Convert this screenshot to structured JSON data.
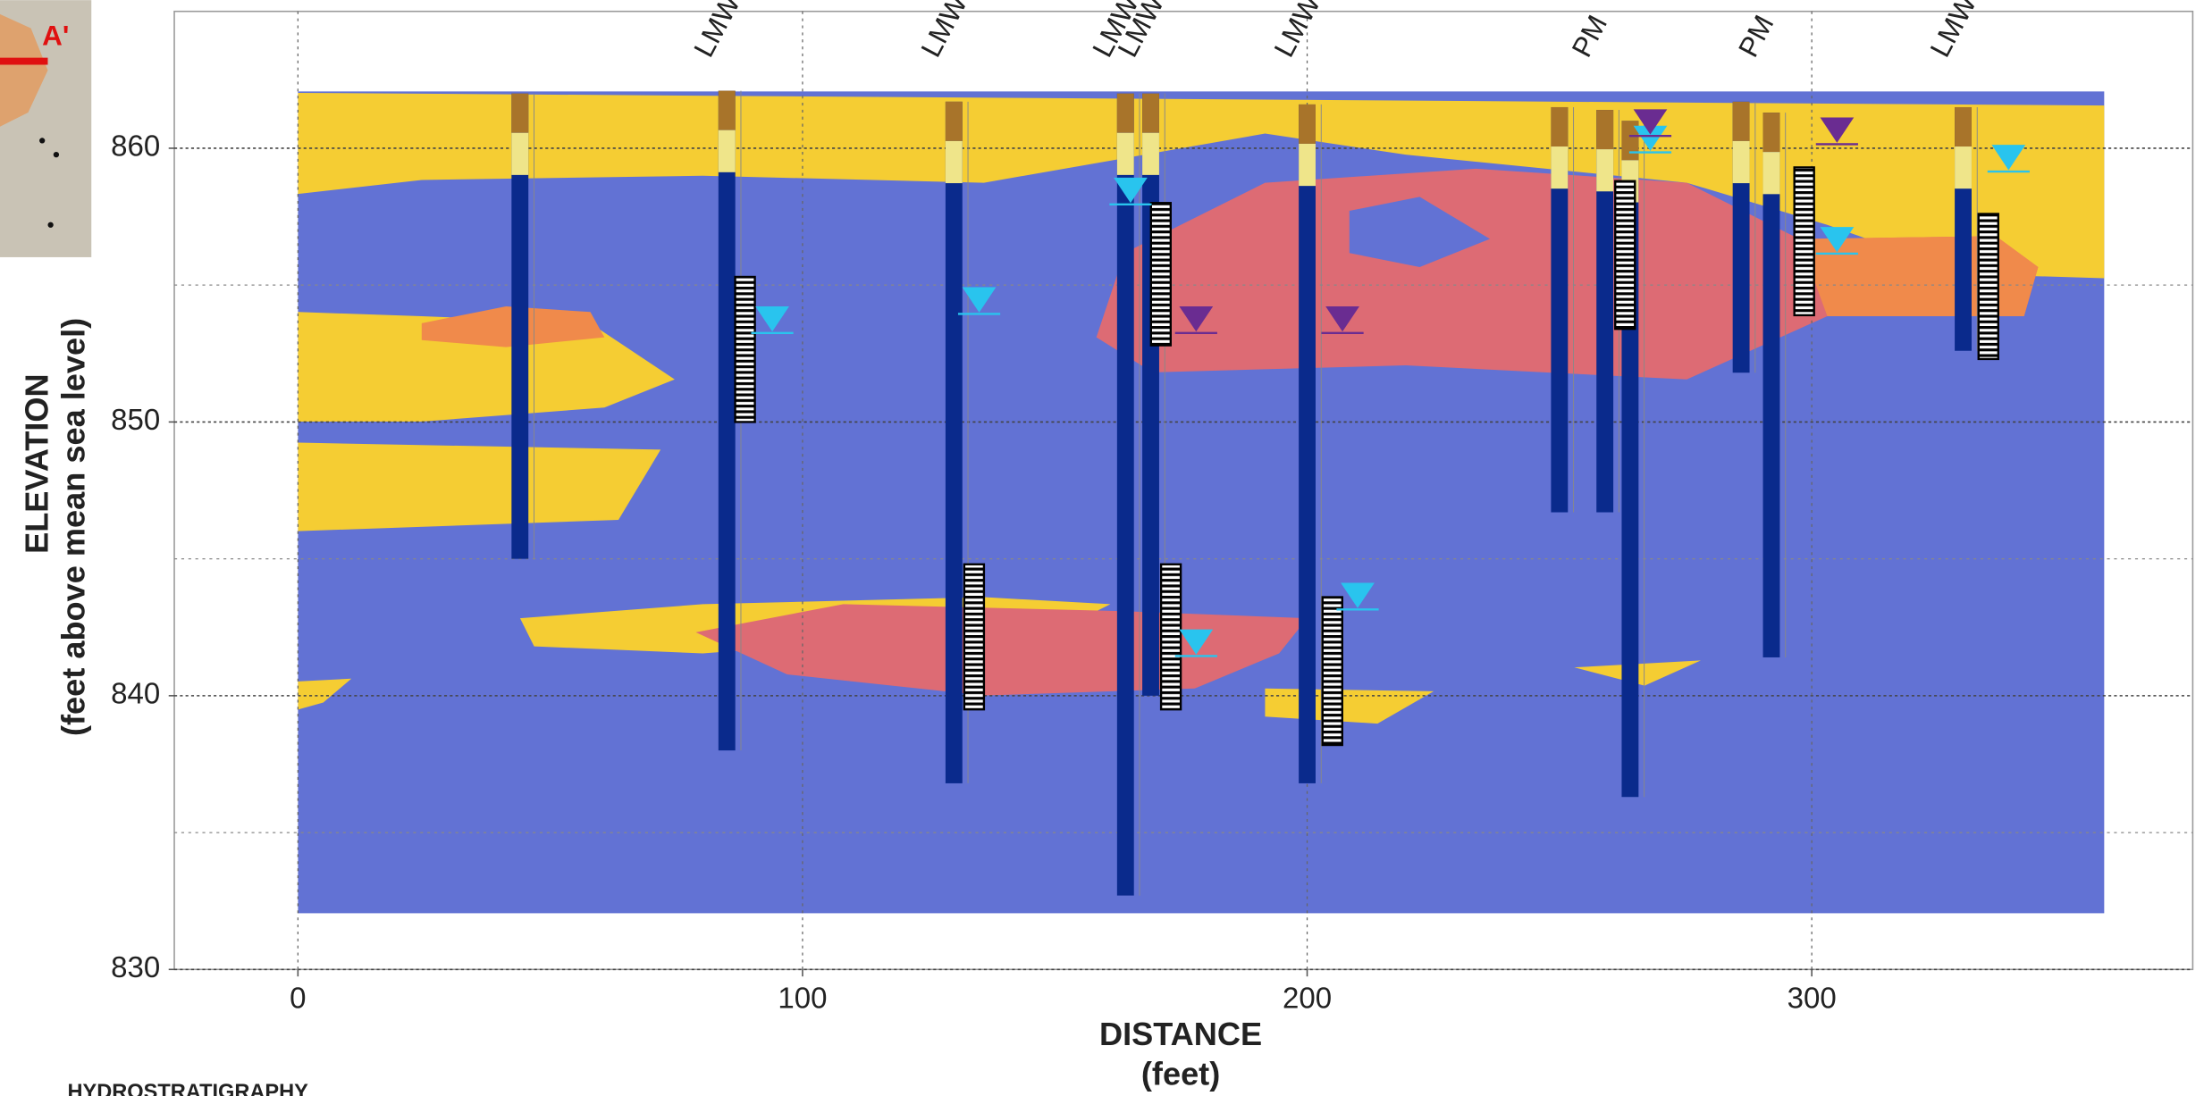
{
  "chart_data": {
    "type": "cross_section",
    "x_label": "DISTANCE",
    "x_label_unit": "(feet)",
    "y_label": "ELEVATION",
    "y_label_unit": "(feet above mean sea level)",
    "legend_heading": "HYDROSTRATIGRAPHY",
    "map_label": "A'",
    "xlim": [
      -24.5,
      375.5
    ],
    "ylim": [
      830,
      865
    ],
    "xticks": [
      0,
      100,
      200,
      300
    ],
    "yticks": [
      830,
      840,
      850,
      860
    ],
    "y_minor_grid": [
      835,
      845,
      855
    ],
    "grid": true,
    "well_color": "#0a2a8c",
    "screen_color": "#000000",
    "wells": [
      {
        "label": null,
        "x": 44,
        "top": 862,
        "bottom": 845
      },
      {
        "label": "LMW-",
        "x": 85,
        "top": 862.1,
        "bottom": 838
      },
      {
        "label": "LMW-",
        "x": 130,
        "top": 861.7,
        "bottom": 836.8
      },
      {
        "label": "LMW-",
        "x": 164,
        "top": 862,
        "bottom": 832.7
      },
      {
        "label": "LMW-",
        "x": 169,
        "top": 862,
        "bottom": 840
      },
      {
        "label": "LMW-",
        "x": 200,
        "top": 861.6,
        "bottom": 836.8
      },
      {
        "label": null,
        "x": 250,
        "top": 861.5,
        "bottom": 846.7
      },
      {
        "label": "PM",
        "x": 259,
        "top": 861.4,
        "bottom": 846.7
      },
      {
        "label": null,
        "x": 264,
        "top": 861,
        "bottom": 836.3
      },
      {
        "label": null,
        "x": 286,
        "top": 861.7,
        "bottom": 851.8
      },
      {
        "label": "PM",
        "x": 292,
        "top": 861.3,
        "bottom": 841.4
      },
      {
        "label": "LMW",
        "x": 330,
        "top": 861.5,
        "bottom": 852.6
      }
    ],
    "screens": [
      {
        "x": 88.6,
        "top": 855.3,
        "bottom": 850
      },
      {
        "x": 134,
        "top": 844.8,
        "bottom": 839.5
      },
      {
        "x": 171,
        "top": 858,
        "bottom": 852.8
      },
      {
        "x": 173,
        "top": 844.8,
        "bottom": 839.5
      },
      {
        "x": 205,
        "top": 843.6,
        "bottom": 838.2
      },
      {
        "x": 263,
        "top": 858.8,
        "bottom": 853.4
      },
      {
        "x": 298.5,
        "top": 859.3,
        "bottom": 853.9
      },
      {
        "x": 335,
        "top": 857.6,
        "bottom": 852.3
      }
    ],
    "water_levels": [
      {
        "x": 94,
        "elevation": 853.3,
        "color": "#29c4ee"
      },
      {
        "x": 135,
        "elevation": 854,
        "color": "#29c4ee"
      },
      {
        "x": 165,
        "elevation": 858,
        "color": "#29c4ee"
      },
      {
        "x": 178,
        "elevation": 841.5,
        "color": "#29c4ee"
      },
      {
        "x": 210,
        "elevation": 843.2,
        "color": "#29c4ee"
      },
      {
        "x": 268,
        "elevation": 859.9,
        "color": "#29c4ee"
      },
      {
        "x": 305,
        "elevation": 856.2,
        "color": "#29c4ee"
      },
      {
        "x": 339,
        "elevation": 859.2,
        "color": "#29c4ee"
      },
      {
        "x": 178,
        "elevation": 853.3,
        "color": "#6a2c91"
      },
      {
        "x": 207,
        "elevation": 853.3,
        "color": "#6a2c91"
      },
      {
        "x": 268,
        "elevation": 860.5,
        "color": "#6a2c91"
      },
      {
        "x": 305,
        "elevation": 860.2,
        "color": "#6a2c91"
      }
    ]
  }
}
